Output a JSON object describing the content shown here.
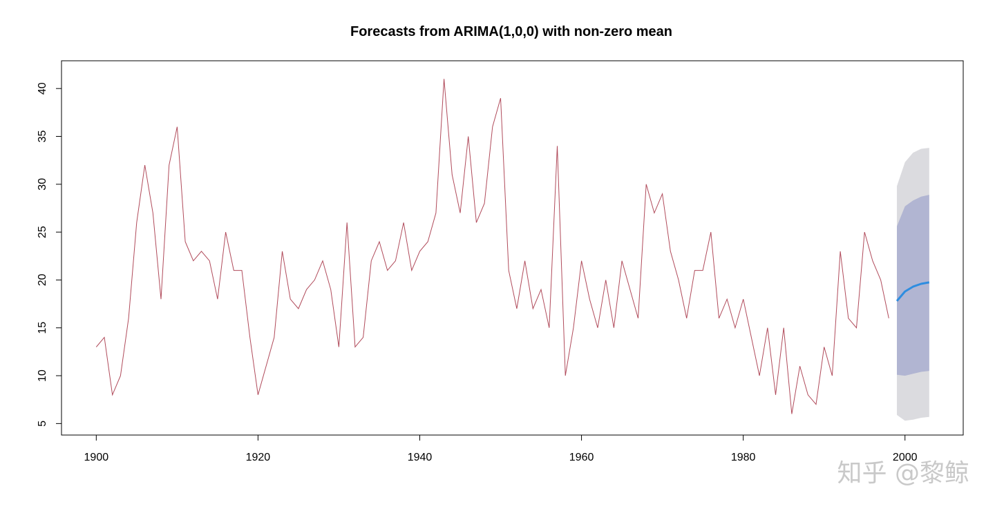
{
  "chart_data": {
    "type": "line",
    "title": "Forecasts from ARIMA(1,0,0) with non-zero mean",
    "xlabel": "",
    "ylabel": "",
    "xlim": [
      1895.7,
      2007.2
    ],
    "ylim": [
      3.8,
      42.9
    ],
    "xticks": [
      1900,
      1920,
      1940,
      1960,
      1980,
      2000
    ],
    "yticks": [
      5,
      10,
      15,
      20,
      25,
      30,
      35,
      40
    ],
    "grid": false,
    "legend": "none",
    "series": [
      {
        "role": "observed",
        "color": "#b04a5a",
        "x": [
          1900,
          1901,
          1902,
          1903,
          1904,
          1905,
          1906,
          1907,
          1908,
          1909,
          1910,
          1911,
          1912,
          1913,
          1914,
          1915,
          1916,
          1917,
          1918,
          1919,
          1920,
          1921,
          1922,
          1923,
          1924,
          1925,
          1926,
          1927,
          1928,
          1929,
          1930,
          1931,
          1932,
          1933,
          1934,
          1935,
          1936,
          1937,
          1938,
          1939,
          1940,
          1941,
          1942,
          1943,
          1944,
          1945,
          1946,
          1947,
          1948,
          1949,
          1950,
          1951,
          1952,
          1953,
          1954,
          1955,
          1956,
          1957,
          1958,
          1959,
          1960,
          1961,
          1962,
          1963,
          1964,
          1965,
          1966,
          1967,
          1968,
          1969,
          1970,
          1971,
          1972,
          1973,
          1974,
          1975,
          1976,
          1977,
          1978,
          1979,
          1980,
          1981,
          1982,
          1983,
          1984,
          1985,
          1986,
          1987,
          1988,
          1989,
          1990,
          1991,
          1992,
          1993,
          1994,
          1995,
          1996,
          1997,
          1998
        ],
        "y": [
          13,
          14,
          8,
          10,
          16,
          26,
          32,
          27,
          18,
          32,
          36,
          24,
          22,
          23,
          22,
          18,
          25,
          21,
          21,
          14,
          8,
          11,
          14,
          23,
          18,
          17,
          19,
          20,
          22,
          19,
          13,
          26,
          13,
          14,
          22,
          24,
          21,
          22,
          26,
          21,
          23,
          24,
          27,
          41,
          31,
          27,
          35,
          26,
          28,
          36,
          39,
          21,
          17,
          22,
          17,
          19,
          15,
          34,
          10,
          15,
          22,
          18,
          15,
          20,
          15,
          22,
          19,
          16,
          30,
          27,
          29,
          23,
          20,
          16,
          21,
          21,
          25,
          16,
          18,
          15,
          18,
          14,
          10,
          15,
          8,
          15,
          6,
          11,
          8,
          7,
          13,
          10,
          23,
          16,
          15,
          25,
          22,
          20,
          16
        ]
      },
      {
        "role": "forecast",
        "color": "#2e8de0",
        "x": [
          1999,
          2000,
          2001,
          2002,
          2003
        ],
        "y": [
          17.8,
          18.8,
          19.3,
          19.6,
          19.75
        ],
        "lo80": [
          10.1,
          10.0,
          10.2,
          10.4,
          10.5
        ],
        "hi80": [
          25.6,
          27.7,
          28.3,
          28.7,
          28.9
        ],
        "lo95": [
          5.9,
          5.3,
          5.4,
          5.6,
          5.7
        ],
        "hi95": [
          29.8,
          32.3,
          33.3,
          33.7,
          33.8
        ]
      }
    ],
    "band_colors": {
      "interval_80": "#b1b5d2",
      "interval_95": "#dbdbdf"
    }
  },
  "watermark": "知乎 @黎鲸"
}
